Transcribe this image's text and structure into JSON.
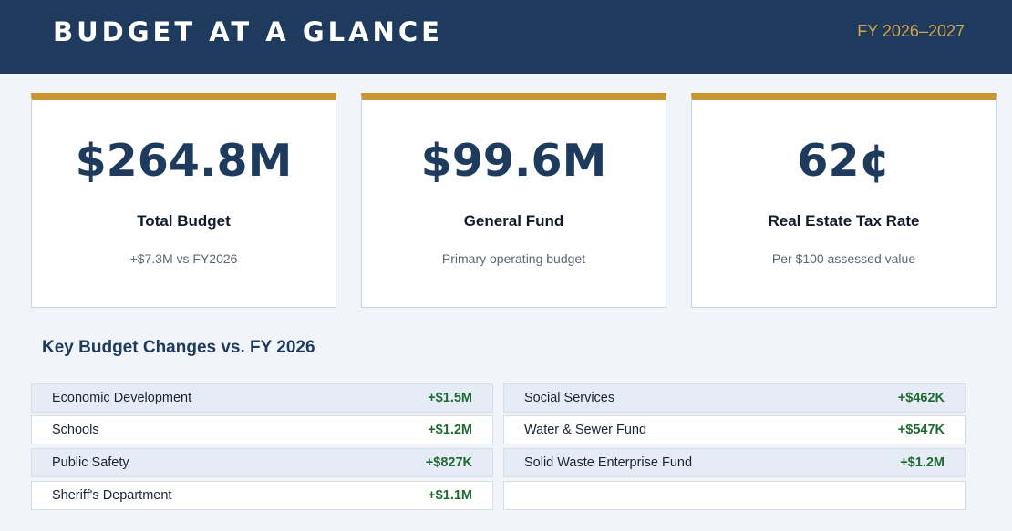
{
  "header": {
    "title": "BUDGET AT A GLANCE",
    "fiscal_year": "FY 2026–2027"
  },
  "cards": [
    {
      "value": "$264.8M",
      "label": "Total Budget",
      "sub": "+$7.3M vs FY2026"
    },
    {
      "value": "$99.6M",
      "label": "General Fund",
      "sub": "Primary operating budget"
    },
    {
      "value": "62¢",
      "label": "Real Estate Tax Rate",
      "sub": "Per $100 assessed value"
    }
  ],
  "changes": {
    "title": "Key Budget Changes vs. FY 2026",
    "left": [
      {
        "name": "Economic Development",
        "value": "+$1.5M"
      },
      {
        "name": "Schools",
        "value": "+$1.2M"
      },
      {
        "name": "Public Safety",
        "value": "+$827K"
      },
      {
        "name": "Sheriff's Department",
        "value": "+$1.1M"
      }
    ],
    "right": [
      {
        "name": "Social Services",
        "value": "+$462K"
      },
      {
        "name": "Water & Sewer Fund",
        "value": "+$547K"
      },
      {
        "name": "Solid Waste Enterprise Fund",
        "value": "+$1.2M"
      },
      {
        "name": "",
        "value": ""
      }
    ]
  },
  "colors": {
    "navy": "#1e3a5c",
    "gold": "#c9952e",
    "positive_green": "#1f6b34",
    "background": "#f1f5fa"
  }
}
